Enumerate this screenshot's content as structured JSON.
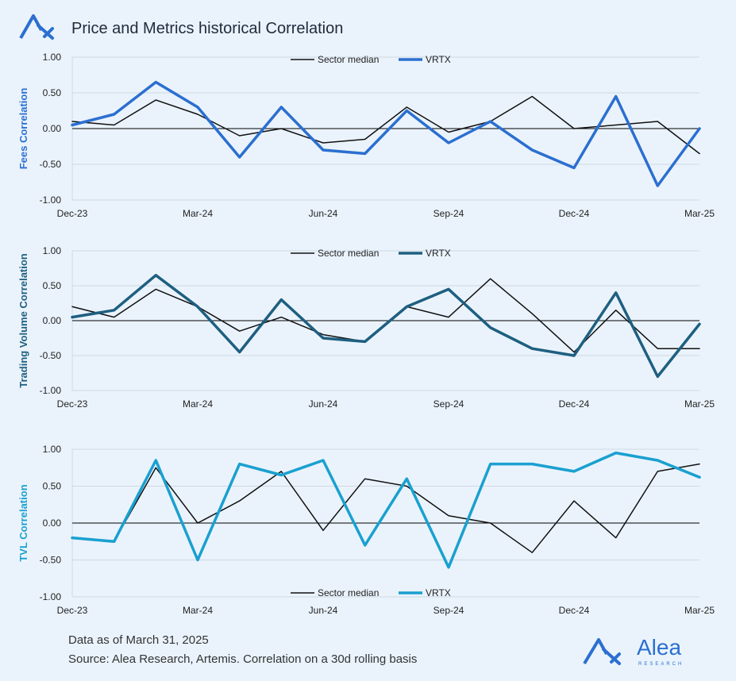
{
  "title": "Price and Metrics historical Correlation",
  "footer": {
    "line1": "Data as of March 31, 2025",
    "line2": "Source: Alea Research, Artemis. Correlation on a 30d rolling basis"
  },
  "brand": {
    "name": "Alea",
    "tagline": "RESEARCH",
    "color": "#2b6fd0"
  },
  "logo_icon": "alea-logo-icon",
  "chart_data": [
    {
      "type": "line",
      "ylabel": "Fees Correlation",
      "ylabel_color": "#2b6fd0",
      "ylim": [
        -1,
        1
      ],
      "yticks": [
        "1.00",
        "0.50",
        "0.00",
        "-0.50",
        "-1.00"
      ],
      "xticks": [
        "Dec-23",
        "Mar-24",
        "Jun-24",
        "Sep-24",
        "Dec-24",
        "Mar-25"
      ],
      "x": [
        "Dec-23",
        "Jan-24",
        "Feb-24",
        "Mar-24",
        "Apr-24",
        "May-24",
        "Jun-24",
        "Jul-24",
        "Aug-24",
        "Sep-24",
        "Oct-24",
        "Nov-24",
        "Dec-24",
        "Jan-25",
        "Feb-25",
        "Mar-25"
      ],
      "legend_position": "top",
      "series": [
        {
          "name": "Sector median",
          "color": "#111111",
          "width": 1.5,
          "values": [
            0.1,
            0.05,
            0.4,
            0.2,
            -0.1,
            0.0,
            -0.2,
            -0.15,
            0.3,
            -0.05,
            0.1,
            0.45,
            0.0,
            0.05,
            0.1,
            -0.35
          ]
        },
        {
          "name": "VRTX",
          "color": "#2b6fd0",
          "width": 3.5,
          "values": [
            0.05,
            0.2,
            0.65,
            0.3,
            -0.4,
            0.3,
            -0.3,
            -0.35,
            0.25,
            -0.2,
            0.1,
            -0.3,
            -0.55,
            0.45,
            -0.8,
            0.0
          ]
        }
      ]
    },
    {
      "type": "line",
      "ylabel": "Trading Volume Correlation",
      "ylabel_color": "#1e5f80",
      "ylim": [
        -1,
        1
      ],
      "yticks": [
        "1.00",
        "0.50",
        "0.00",
        "-0.50",
        "-1.00"
      ],
      "xticks": [
        "Dec-23",
        "Mar-24",
        "Jun-24",
        "Sep-24",
        "Dec-24",
        "Mar-25"
      ],
      "x": [
        "Dec-23",
        "Jan-24",
        "Feb-24",
        "Mar-24",
        "Apr-24",
        "May-24",
        "Jun-24",
        "Jul-24",
        "Aug-24",
        "Sep-24",
        "Oct-24",
        "Nov-24",
        "Dec-24",
        "Jan-25",
        "Feb-25",
        "Mar-25"
      ],
      "legend_position": "top",
      "series": [
        {
          "name": "Sector median",
          "color": "#111111",
          "width": 1.5,
          "values": [
            0.2,
            0.05,
            0.45,
            0.2,
            -0.15,
            0.05,
            -0.2,
            -0.3,
            0.2,
            0.05,
            0.6,
            0.1,
            -0.45,
            0.15,
            -0.4,
            -0.4
          ]
        },
        {
          "name": "VRTX",
          "color": "#1e5f80",
          "width": 3.5,
          "values": [
            0.05,
            0.15,
            0.65,
            0.2,
            -0.45,
            0.3,
            -0.25,
            -0.3,
            0.2,
            0.45,
            -0.1,
            -0.4,
            -0.5,
            0.4,
            -0.8,
            -0.05
          ]
        }
      ]
    },
    {
      "type": "line",
      "ylabel": "TVL Correlation",
      "ylabel_color": "#1aa0d0",
      "ylim": [
        -1,
        1
      ],
      "yticks": [
        "1.00",
        "0.50",
        "0.00",
        "-0.50",
        "-1.00"
      ],
      "xticks": [
        "Dec-23",
        "Mar-24",
        "Jun-24",
        "Sep-24",
        "Dec-24",
        "Mar-25"
      ],
      "x": [
        "Dec-23",
        "Jan-24",
        "Feb-24",
        "Mar-24",
        "Apr-24",
        "May-24",
        "Jun-24",
        "Jul-24",
        "Aug-24",
        "Sep-24",
        "Oct-24",
        "Nov-24",
        "Dec-24",
        "Jan-25",
        "Feb-25",
        "Mar-25"
      ],
      "legend_position": "bottom",
      "series": [
        {
          "name": "Sector median",
          "color": "#111111",
          "width": 1.5,
          "values": [
            -0.2,
            -0.25,
            0.75,
            0.0,
            0.3,
            0.7,
            -0.1,
            0.6,
            0.5,
            0.1,
            0.0,
            -0.4,
            0.3,
            -0.2,
            0.7,
            0.8
          ]
        },
        {
          "name": "VRTX",
          "color": "#1aa0d0",
          "width": 3.5,
          "values": [
            -0.2,
            -0.25,
            0.85,
            -0.5,
            0.8,
            0.65,
            0.85,
            -0.3,
            0.6,
            -0.6,
            0.8,
            0.8,
            0.7,
            0.95,
            0.85,
            0.62
          ]
        }
      ]
    }
  ]
}
